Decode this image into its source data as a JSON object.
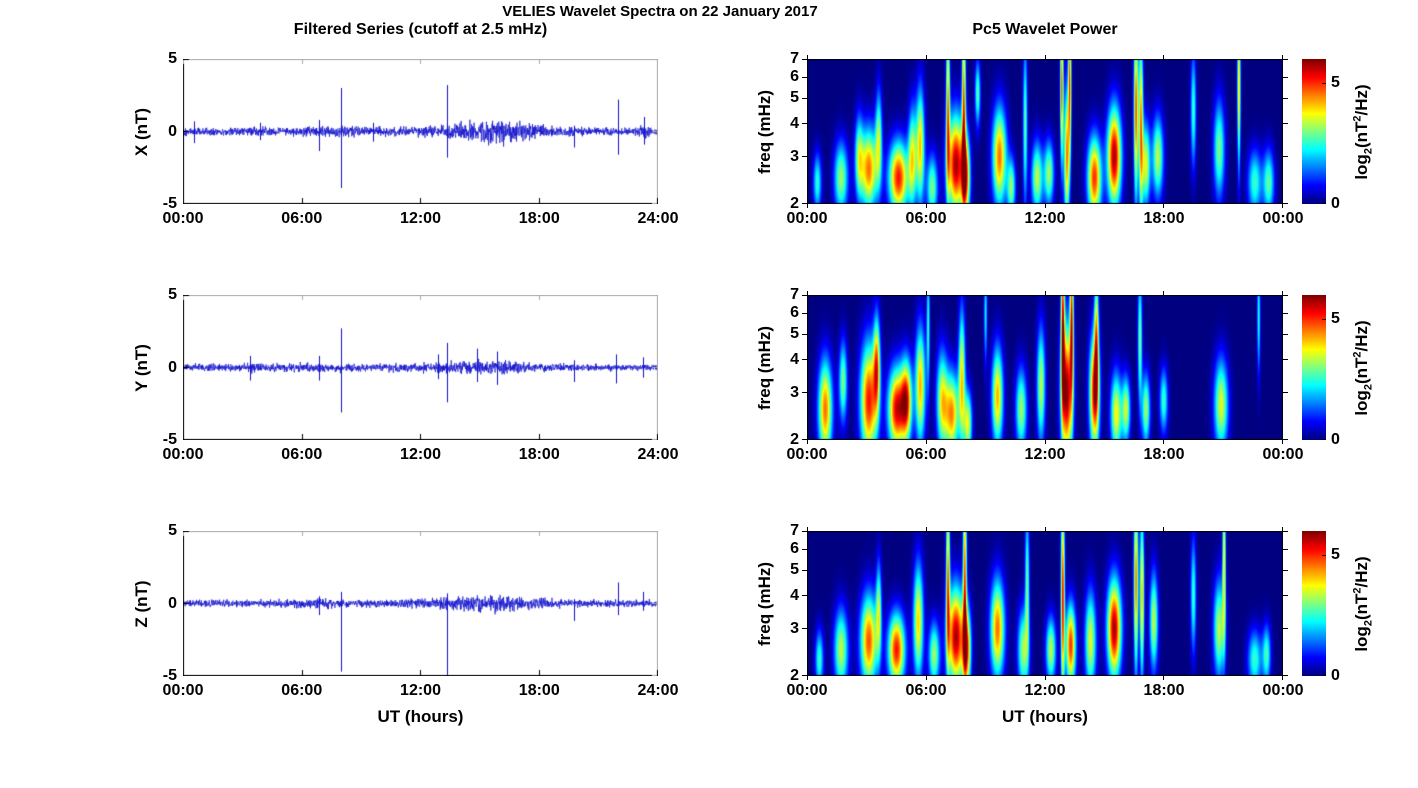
{
  "figure": {
    "title": "VELIES Wavelet Spectra on 22 January 2017",
    "left_column_title": "Filtered Series (cutoff at 2.5 mHz)",
    "right_column_title": "Pc5 Wavelet Power",
    "background": "#ffffff"
  },
  "colors": {
    "trace_blue": "#1111cc",
    "spectrogram_background": "#000080",
    "axis_dark": "#000000",
    "frame_light": "#aaaaaa"
  },
  "chart_data": [
    {
      "id": "timeseries-x",
      "type": "line",
      "component": "X",
      "ylabel": "X (nT)",
      "xlabel": "",
      "ylim": [
        -5,
        5
      ],
      "yticks": [
        5,
        0,
        -5
      ],
      "x_hours": [
        0,
        24
      ],
      "xticks": [
        "00:00",
        "06:00",
        "12:00",
        "18:00",
        "24:00"
      ],
      "line_color": "#1111cc",
      "noise_envelope": [
        [
          0,
          0.16
        ],
        [
          2,
          0.15
        ],
        [
          3.5,
          0.19
        ],
        [
          5,
          0.15
        ],
        [
          6.4,
          0.22
        ],
        [
          8.6,
          0.22
        ],
        [
          9.2,
          0.16
        ],
        [
          12.2,
          0.2
        ],
        [
          13.8,
          0.3
        ],
        [
          14.8,
          0.42
        ],
        [
          16,
          0.48
        ],
        [
          17,
          0.42
        ],
        [
          17.8,
          0.26
        ],
        [
          18.6,
          0.2
        ],
        [
          20,
          0.16
        ],
        [
          21.5,
          0.15
        ],
        [
          23,
          0.16
        ],
        [
          23.35,
          0.3
        ],
        [
          23.7,
          0.14
        ],
        [
          24,
          0.13
        ]
      ],
      "spikes": [
        [
          0.55,
          0.7,
          -0.8
        ],
        [
          3.9,
          0.6,
          -0.6
        ],
        [
          6.9,
          0.8,
          -1.35
        ],
        [
          8.02,
          3.0,
          -3.9
        ],
        [
          9.6,
          0.6,
          -0.7
        ],
        [
          13.35,
          3.2,
          -1.8
        ],
        [
          19.8,
          0.4,
          -1.1
        ],
        [
          22.0,
          2.2,
          -1.6
        ],
        [
          23.35,
          1.0,
          -0.9
        ]
      ]
    },
    {
      "id": "timeseries-y",
      "type": "line",
      "component": "Y",
      "ylabel": "Y (nT)",
      "xlabel": "",
      "ylim": [
        -5,
        5
      ],
      "yticks": [
        5,
        0,
        -5
      ],
      "x_hours": [
        0,
        24
      ],
      "xticks": [
        "00:00",
        "06:00",
        "12:00",
        "18:00",
        "24:00"
      ],
      "line_color": "#1111cc",
      "noise_envelope": [
        [
          0,
          0.13
        ],
        [
          3,
          0.15
        ],
        [
          3.6,
          0.2
        ],
        [
          4.2,
          0.15
        ],
        [
          6,
          0.17
        ],
        [
          8.5,
          0.17
        ],
        [
          9.5,
          0.14
        ],
        [
          12.4,
          0.2
        ],
        [
          13.5,
          0.24
        ],
        [
          15,
          0.26
        ],
        [
          16.5,
          0.24
        ],
        [
          17.5,
          0.17
        ],
        [
          19,
          0.14
        ],
        [
          21,
          0.12
        ],
        [
          24,
          0.11
        ]
      ],
      "spikes": [
        [
          3.4,
          0.8,
          -0.9
        ],
        [
          6.9,
          0.8,
          -0.9
        ],
        [
          8.02,
          2.7,
          -3.1
        ],
        [
          12.9,
          0.9,
          -0.8
        ],
        [
          13.35,
          1.7,
          -2.4
        ],
        [
          14.9,
          1.3,
          -1.0
        ],
        [
          15.9,
          1.1,
          -1.2
        ],
        [
          19.8,
          0.5,
          -1.0
        ],
        [
          21.9,
          0.9,
          -1.1
        ],
        [
          23.3,
          0.7,
          -0.7
        ]
      ]
    },
    {
      "id": "timeseries-z",
      "type": "line",
      "component": "Z",
      "ylabel": "Z (nT)",
      "xlabel": "UT (hours)",
      "ylim": [
        -5,
        5
      ],
      "yticks": [
        5,
        0,
        -5
      ],
      "x_hours": [
        0,
        24
      ],
      "xticks": [
        "00:00",
        "06:00",
        "12:00",
        "18:00",
        "24:00"
      ],
      "line_color": "#1111cc",
      "noise_envelope": [
        [
          0,
          0.12
        ],
        [
          2,
          0.13
        ],
        [
          3.5,
          0.16
        ],
        [
          5,
          0.14
        ],
        [
          6.4,
          0.19
        ],
        [
          8.6,
          0.17
        ],
        [
          10,
          0.15
        ],
        [
          12,
          0.17
        ],
        [
          13.8,
          0.28
        ],
        [
          15.5,
          0.33
        ],
        [
          16.8,
          0.3
        ],
        [
          17.8,
          0.22
        ],
        [
          19,
          0.16
        ],
        [
          20.5,
          0.13
        ],
        [
          21.8,
          0.14
        ],
        [
          23,
          0.15
        ],
        [
          24,
          0.12
        ]
      ],
      "spikes": [
        [
          6.9,
          0.5,
          -0.8
        ],
        [
          8.02,
          0.8,
          -4.7
        ],
        [
          13.35,
          0.7,
          -4.95
        ],
        [
          19.8,
          0.3,
          -1.2
        ],
        [
          22.0,
          1.45,
          -0.8
        ],
        [
          23.3,
          0.8,
          -0.5
        ]
      ]
    },
    {
      "id": "wavelet-x",
      "type": "heatmap",
      "component": "X",
      "ylabel": "freq (mHz)",
      "xlabel": "",
      "yscale": "log",
      "ylim_mhz": [
        2,
        7
      ],
      "yticks": [
        7,
        6,
        5,
        4,
        3,
        2
      ],
      "x_hours": [
        0,
        24
      ],
      "xticks": [
        "00:00",
        "06:00",
        "12:00",
        "18:00",
        "00:00"
      ],
      "background": "#000080",
      "colorbar": {
        "max": 6,
        "ticks": [
          {
            "value": 5,
            "label": "5"
          },
          {
            "value": 0,
            "label": "0"
          }
        ],
        "label_parts": {
          "pre": "log",
          "sub": "2",
          "mid": "(nT",
          "sup": "2",
          "post": "/Hz)"
        }
      },
      "blobs": [
        [
          0.5,
          2.4,
          0.15,
          0.18,
          2.5
        ],
        [
          1.7,
          2.5,
          0.25,
          0.22,
          3.2
        ],
        [
          2.6,
          3.0,
          0.15,
          0.25,
          2.8
        ],
        [
          3.1,
          2.7,
          0.3,
          0.25,
          4.6
        ],
        [
          3.6,
          3.5,
          0.12,
          0.3,
          3.0
        ],
        [
          4.6,
          2.5,
          0.35,
          0.22,
          5.2
        ],
        [
          5.3,
          3.0,
          0.15,
          0.3,
          3.5
        ],
        [
          5.7,
          3.3,
          0.15,
          0.35,
          4.0
        ],
        [
          6.3,
          2.3,
          0.2,
          0.2,
          3.0
        ],
        [
          7.1,
          4.8,
          0.07,
          0.55,
          4.2
        ],
        [
          7.5,
          2.8,
          0.3,
          0.3,
          5.8
        ],
        [
          7.9,
          5.0,
          0.07,
          0.55,
          4.5
        ],
        [
          8.0,
          2.5,
          0.15,
          0.25,
          4.5
        ],
        [
          8.6,
          5.2,
          0.1,
          0.2,
          2.8
        ],
        [
          9.7,
          3.0,
          0.25,
          0.3,
          4.6
        ],
        [
          10.3,
          2.3,
          0.15,
          0.18,
          3.0
        ],
        [
          11.0,
          4.0,
          0.08,
          0.5,
          2.8
        ],
        [
          11.6,
          2.5,
          0.2,
          0.22,
          3.4
        ],
        [
          12.2,
          2.6,
          0.18,
          0.2,
          3.2
        ],
        [
          12.85,
          5.5,
          0.06,
          0.45,
          4.8
        ],
        [
          13.1,
          3.0,
          0.1,
          0.4,
          4.5
        ],
        [
          13.25,
          5.8,
          0.06,
          0.45,
          4.6
        ],
        [
          14.5,
          2.5,
          0.25,
          0.25,
          5.0
        ],
        [
          15.5,
          3.0,
          0.25,
          0.3,
          5.8
        ],
        [
          16.6,
          4.5,
          0.08,
          0.55,
          4.8
        ],
        [
          16.85,
          4.0,
          0.08,
          0.55,
          4.4
        ],
        [
          17.1,
          2.8,
          0.15,
          0.25,
          3.6
        ],
        [
          17.7,
          3.0,
          0.2,
          0.25,
          3.4
        ],
        [
          19.5,
          4.5,
          0.1,
          0.35,
          2.6
        ],
        [
          20.8,
          3.2,
          0.2,
          0.3,
          3.0
        ],
        [
          21.8,
          5.5,
          0.06,
          0.5,
          4.0
        ],
        [
          22.6,
          2.4,
          0.25,
          0.2,
          2.6
        ],
        [
          23.3,
          2.4,
          0.2,
          0.2,
          2.8
        ]
      ]
    },
    {
      "id": "wavelet-y",
      "type": "heatmap",
      "component": "Y",
      "ylabel": "freq (mHz)",
      "xlabel": "",
      "yscale": "log",
      "ylim_mhz": [
        2,
        7
      ],
      "yticks": [
        7,
        6,
        5,
        4,
        3,
        2
      ],
      "x_hours": [
        0,
        24
      ],
      "xticks": [
        "00:00",
        "06:00",
        "12:00",
        "18:00",
        "00:00"
      ],
      "background": "#000080",
      "colorbar": {
        "max": 6,
        "ticks": [
          {
            "value": 5,
            "label": "5"
          },
          {
            "value": 0,
            "label": "0"
          }
        ],
        "label_parts": {
          "pre": "log",
          "sub": "2",
          "mid": "(nT",
          "sup": "2",
          "post": "/Hz)"
        }
      },
      "blobs": [
        [
          0.9,
          2.6,
          0.25,
          0.3,
          4.6
        ],
        [
          1.8,
          3.3,
          0.15,
          0.25,
          3.0
        ],
        [
          3.1,
          2.8,
          0.3,
          0.35,
          5.2
        ],
        [
          3.5,
          3.8,
          0.12,
          0.3,
          4.0
        ],
        [
          4.5,
          2.6,
          0.3,
          0.25,
          5.4
        ],
        [
          5.0,
          2.8,
          0.2,
          0.25,
          4.8
        ],
        [
          5.7,
          3.2,
          0.18,
          0.35,
          4.2
        ],
        [
          6.1,
          5.5,
          0.06,
          0.4,
          2.4
        ],
        [
          6.8,
          2.8,
          0.2,
          0.3,
          3.6
        ],
        [
          7.3,
          2.5,
          0.25,
          0.25,
          4.4
        ],
        [
          7.8,
          3.5,
          0.12,
          0.4,
          3.8
        ],
        [
          8.1,
          2.3,
          0.15,
          0.2,
          3.6
        ],
        [
          9.0,
          6.0,
          0.06,
          0.3,
          2.2
        ],
        [
          9.6,
          2.9,
          0.2,
          0.3,
          4.2
        ],
        [
          10.8,
          2.6,
          0.2,
          0.25,
          3.2
        ],
        [
          11.8,
          3.2,
          0.15,
          0.35,
          3.4
        ],
        [
          12.9,
          5.5,
          0.07,
          0.5,
          5.0
        ],
        [
          13.1,
          3.0,
          0.2,
          0.4,
          6.0
        ],
        [
          13.35,
          5.8,
          0.07,
          0.5,
          4.8
        ],
        [
          14.5,
          3.0,
          0.18,
          0.35,
          5.4
        ],
        [
          14.6,
          5.0,
          0.08,
          0.4,
          3.6
        ],
        [
          15.6,
          2.5,
          0.2,
          0.25,
          3.8
        ],
        [
          16.1,
          2.6,
          0.15,
          0.2,
          3.4
        ],
        [
          16.8,
          4.8,
          0.08,
          0.4,
          3.0
        ],
        [
          17.1,
          2.6,
          0.15,
          0.22,
          3.2
        ],
        [
          18.0,
          2.8,
          0.15,
          0.2,
          2.6
        ],
        [
          20.9,
          2.7,
          0.25,
          0.28,
          3.6
        ],
        [
          22.8,
          5.8,
          0.06,
          0.35,
          2.4
        ]
      ]
    },
    {
      "id": "wavelet-z",
      "type": "heatmap",
      "component": "Z",
      "ylabel": "freq (mHz)",
      "xlabel": "UT (hours)",
      "yscale": "log",
      "ylim_mhz": [
        2,
        7
      ],
      "yticks": [
        7,
        6,
        5,
        4,
        3,
        2
      ],
      "x_hours": [
        0,
        24
      ],
      "xticks": [
        "00:00",
        "06:00",
        "12:00",
        "18:00",
        "00:00"
      ],
      "background": "#000080",
      "colorbar": {
        "max": 6,
        "ticks": [
          {
            "value": 5,
            "label": "5"
          },
          {
            "value": 0,
            "label": "0"
          }
        ],
        "label_parts": {
          "pre": "log",
          "sub": "2",
          "mid": "(nT",
          "sup": "2",
          "post": "/Hz)"
        }
      },
      "blobs": [
        [
          0.6,
          2.3,
          0.15,
          0.18,
          2.6
        ],
        [
          1.7,
          2.5,
          0.25,
          0.25,
          3.4
        ],
        [
          3.1,
          2.7,
          0.3,
          0.28,
          4.8
        ],
        [
          3.6,
          3.5,
          0.1,
          0.3,
          3.0
        ],
        [
          4.5,
          2.5,
          0.3,
          0.22,
          5.2
        ],
        [
          5.6,
          3.2,
          0.18,
          0.35,
          4.0
        ],
        [
          6.4,
          2.4,
          0.2,
          0.2,
          3.2
        ],
        [
          7.1,
          4.8,
          0.07,
          0.55,
          4.3
        ],
        [
          7.5,
          2.8,
          0.3,
          0.3,
          5.8
        ],
        [
          7.95,
          5.0,
          0.07,
          0.55,
          4.5
        ],
        [
          8.05,
          2.5,
          0.15,
          0.25,
          4.4
        ],
        [
          9.6,
          3.0,
          0.25,
          0.3,
          4.6
        ],
        [
          10.9,
          2.5,
          0.2,
          0.25,
          3.2
        ],
        [
          11.1,
          4.5,
          0.08,
          0.45,
          2.8
        ],
        [
          12.3,
          2.5,
          0.18,
          0.2,
          3.4
        ],
        [
          12.9,
          4.0,
          0.07,
          0.6,
          5.2
        ],
        [
          13.3,
          2.6,
          0.18,
          0.25,
          5.0
        ],
        [
          14.3,
          2.7,
          0.2,
          0.3,
          3.6
        ],
        [
          15.5,
          3.0,
          0.25,
          0.3,
          5.8
        ],
        [
          16.6,
          4.5,
          0.08,
          0.55,
          4.6
        ],
        [
          16.9,
          4.0,
          0.08,
          0.5,
          4.2
        ],
        [
          17.5,
          3.2,
          0.15,
          0.3,
          3.4
        ],
        [
          19.5,
          4.0,
          0.1,
          0.35,
          2.6
        ],
        [
          20.8,
          3.0,
          0.2,
          0.3,
          3.4
        ],
        [
          21.05,
          5.5,
          0.06,
          0.5,
          3.8
        ],
        [
          22.6,
          2.3,
          0.25,
          0.18,
          2.6
        ],
        [
          23.2,
          2.4,
          0.15,
          0.18,
          2.6
        ]
      ]
    }
  ]
}
